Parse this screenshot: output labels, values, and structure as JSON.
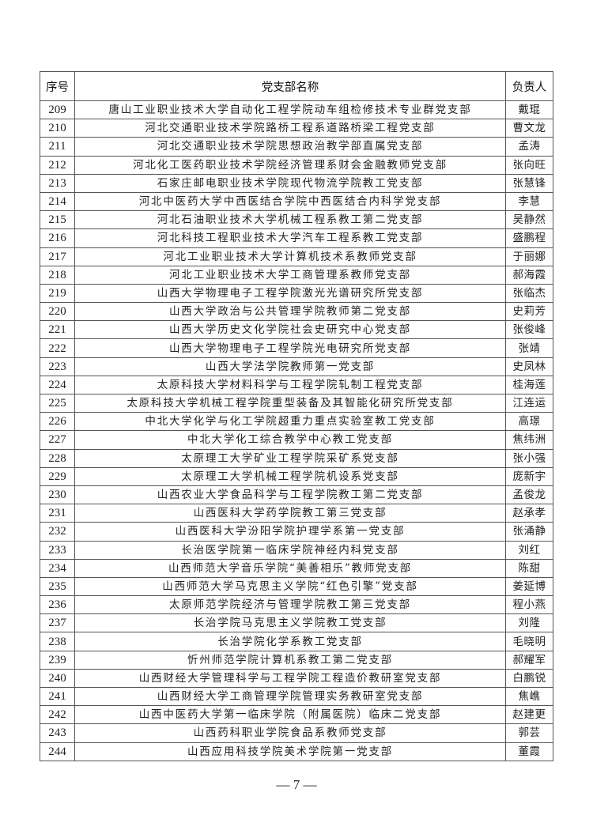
{
  "table": {
    "headers": [
      "序号",
      "党支部名称",
      "负责人"
    ],
    "rows": [
      [
        "209",
        "唐山工业职业技术大学自动化工程学院动车组检修技术专业群党支部",
        "戴琨"
      ],
      [
        "210",
        "河北交通职业技术学院路桥工程系道路桥梁工程党支部",
        "曹文龙"
      ],
      [
        "211",
        "河北交通职业技术学院思想政治教学部直属党支部",
        "孟涛"
      ],
      [
        "212",
        "河北化工医药职业技术学院经济管理系财会金融教师党支部",
        "张向旺"
      ],
      [
        "213",
        "石家庄邮电职业技术学院现代物流学院教工党支部",
        "张慧锋"
      ],
      [
        "214",
        "河北中医药大学中西医结合学院中西医结合内科学党支部",
        "李慧"
      ],
      [
        "215",
        "河北石油职业技术大学机械工程系教工第二党支部",
        "吴静然"
      ],
      [
        "216",
        "河北科技工程职业技术大学汽车工程系教工党支部",
        "盛鹏程"
      ],
      [
        "217",
        "河北工业职业技术大学计算机技术系教师党支部",
        "于丽娜"
      ],
      [
        "218",
        "河北工业职业技术大学工商管理系教师党支部",
        "郝海霞"
      ],
      [
        "219",
        "山西大学物理电子工程学院激光光谱研究所党支部",
        "张临杰"
      ],
      [
        "220",
        "山西大学政治与公共管理学院教师第二党支部",
        "史莉芳"
      ],
      [
        "221",
        "山西大学历史文化学院社会史研究中心党支部",
        "张俊峰"
      ],
      [
        "222",
        "山西大学物理电子工程学院光电研究所党支部",
        "张靖"
      ],
      [
        "223",
        "山西大学法学院教师第一党支部",
        "史凤林"
      ],
      [
        "224",
        "太原科技大学材料科学与工程学院轧制工程党支部",
        "桂海莲"
      ],
      [
        "225",
        "太原科技大学机械工程学院重型装备及其智能化研究所党支部",
        "江连运"
      ],
      [
        "226",
        "中北大学化学与化工学院超重力重点实验室教工党支部",
        "高璟"
      ],
      [
        "227",
        "中北大学化工综合教学中心教工党支部",
        "焦纬洲"
      ],
      [
        "228",
        "太原理工大学矿业工程学院采矿系党支部",
        "张小强"
      ],
      [
        "229",
        "太原理工大学机械工程学院机设系党支部",
        "庞新宇"
      ],
      [
        "230",
        "山西农业大学食品科学与工程学院教工第二党支部",
        "孟俊龙"
      ],
      [
        "231",
        "山西医科大学药学院教工第三党支部",
        "赵承孝"
      ],
      [
        "232",
        "山西医科大学汾阳学院护理学系第一党支部",
        "张涌静"
      ],
      [
        "233",
        "长治医学院第一临床学院神经内科党支部",
        "刘红"
      ],
      [
        "234",
        "山西师范大学音乐学院“美善相乐”教师党支部",
        "陈甜"
      ],
      [
        "235",
        "山西师范大学马克思主义学院“红色引擎”党支部",
        "姜延博"
      ],
      [
        "236",
        "太原师范学院经济与管理学院教工第三党支部",
        "程小燕"
      ],
      [
        "237",
        "长治学院马克思主义学院教工党支部",
        "刘隆"
      ],
      [
        "238",
        "长治学院化学系教工党支部",
        "毛晓明"
      ],
      [
        "239",
        "忻州师范学院计算机系教工第二党支部",
        "郝耀军"
      ],
      [
        "240",
        "山西财经大学管理科学与工程学院工程造价教研室党支部",
        "白鹏锐"
      ],
      [
        "241",
        "山西财经大学工商管理学院管理实务教研室党支部",
        "焦嶕"
      ],
      [
        "242",
        "山西中医药大学第一临床学院（附属医院）临床二党支部",
        "赵建更"
      ],
      [
        "243",
        "山西药科职业学院食品系教师党支部",
        "郭芸"
      ],
      [
        "244",
        "山西应用科技学院美术学院第一党支部",
        "董霞"
      ]
    ]
  },
  "footer": {
    "page_number": "— 7 —"
  }
}
